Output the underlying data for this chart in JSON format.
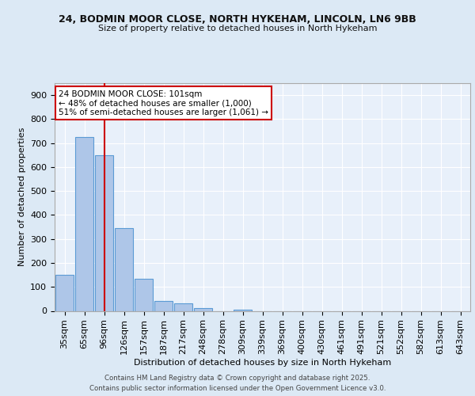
{
  "title1": "24, BODMIN MOOR CLOSE, NORTH HYKEHAM, LINCOLN, LN6 9BB",
  "title2": "Size of property relative to detached houses in North Hykeham",
  "xlabel": "Distribution of detached houses by size in North Hykeham",
  "ylabel": "Number of detached properties",
  "bar_labels": [
    "35sqm",
    "65sqm",
    "96sqm",
    "126sqm",
    "157sqm",
    "187sqm",
    "217sqm",
    "248sqm",
    "278sqm",
    "309sqm",
    "339sqm",
    "369sqm",
    "400sqm",
    "430sqm",
    "461sqm",
    "491sqm",
    "521sqm",
    "552sqm",
    "582sqm",
    "613sqm",
    "643sqm"
  ],
  "bar_values": [
    150,
    725,
    648,
    345,
    133,
    42,
    31,
    13,
    0,
    6,
    0,
    0,
    0,
    0,
    0,
    0,
    0,
    0,
    0,
    0,
    0
  ],
  "bar_color": "#aec6e8",
  "bar_edge_color": "#5b9bd5",
  "bg_color": "#dce9f5",
  "plot_bg_color": "#e8f0fa",
  "grid_color": "#ffffff",
  "vline_x": 2,
  "vline_color": "#cc0000",
  "annotation_text": "24 BODMIN MOOR CLOSE: 101sqm\n← 48% of detached houses are smaller (1,000)\n51% of semi-detached houses are larger (1,061) →",
  "annotation_box_color": "#ffffff",
  "annotation_box_edge": "#cc0000",
  "ylim": [
    0,
    950
  ],
  "yticks": [
    0,
    100,
    200,
    300,
    400,
    500,
    600,
    700,
    800,
    900
  ],
  "footer1": "Contains HM Land Registry data © Crown copyright and database right 2025.",
  "footer2": "Contains public sector information licensed under the Open Government Licence v3.0."
}
